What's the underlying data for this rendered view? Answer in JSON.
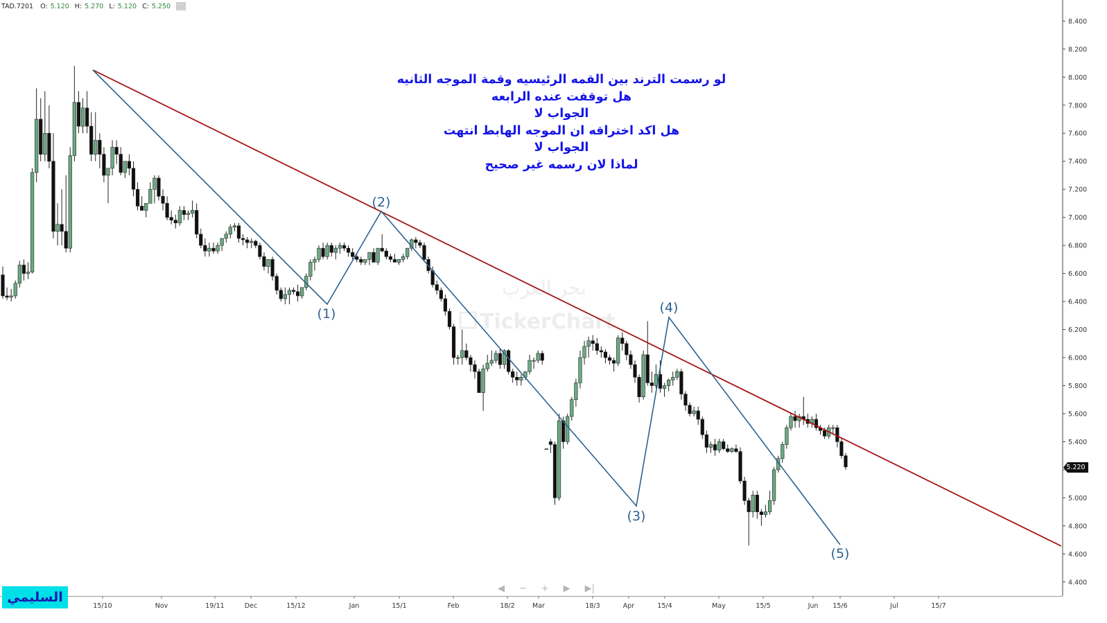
{
  "header": {
    "symbol": "TAD.7201",
    "open_label": "O:",
    "open": "5.120",
    "high_label": "H:",
    "high": "5.270",
    "low_label": "L:",
    "low": "5.120",
    "close_label": "C:",
    "close": "5.250",
    "more_icon": "ellipsis-icon"
  },
  "annotation_lines": [
    "لو رسمت الترند بين القمه  الرئيسيه وقمة الموجه الثانيه",
    "هل توقفت عنده الرابعه",
    "الجواب لا",
    "هل اكد اختراقه ان الموجه الهابط انتهت",
    "الجواب لا",
    "لماذا لان رسمه غير صحيح"
  ],
  "author_badge": "السليمي",
  "watermark": {
    "text1": "بحر العرب",
    "text2": "TickerChart"
  },
  "nav_controls": {
    "icons": [
      "chevron-left-icon",
      "minus-icon",
      "plus-icon",
      "chevron-right-icon",
      "skip-end-icon"
    ]
  },
  "colors": {
    "up_candle": "#6aab83",
    "down_candle": "#111111",
    "trendline": "#a41414",
    "wave_lines": "#2d6190",
    "annotation_text": "#1414e6",
    "badge_bg": "#00e0e8"
  },
  "chart_data": {
    "type": "candlestick",
    "symbol": "TAD.7201",
    "last_price": "5.220",
    "y_axis": {
      "range": [
        4.3,
        8.55
      ],
      "ticks": [
        "8.400",
        "8.200",
        "8.000",
        "7.800",
        "7.600",
        "7.400",
        "7.200",
        "7.000",
        "6.800",
        "6.600",
        "6.400",
        "6.200",
        "6.000",
        "5.800",
        "5.600",
        "5.400",
        "5.200",
        "5.000",
        "4.800",
        "4.600",
        "4.400"
      ]
    },
    "x_ticks": [
      "15/10",
      "Nov",
      "19/11",
      "Dec",
      "15/12",
      "Jan",
      "15/1",
      "Feb",
      "18/2",
      "Mar",
      "18/3",
      "Apr",
      "15/4",
      "May",
      "15/5",
      "Jun",
      "15/6",
      "Jul",
      "15/7"
    ],
    "candles": [
      [
        6.59,
        6.65,
        6.42,
        6.44
      ],
      [
        6.44,
        6.5,
        6.41,
        6.43
      ],
      [
        6.43,
        6.49,
        6.4,
        6.44
      ],
      [
        6.44,
        6.55,
        6.42,
        6.53
      ],
      [
        6.53,
        6.69,
        6.5,
        6.66
      ],
      [
        6.66,
        6.7,
        6.55,
        6.6
      ],
      [
        6.6,
        6.68,
        6.56,
        6.61
      ],
      [
        6.61,
        7.35,
        6.6,
        7.32
      ],
      [
        7.32,
        7.92,
        7.25,
        7.7
      ],
      [
        7.7,
        7.85,
        7.4,
        7.45
      ],
      [
        7.45,
        7.9,
        7.4,
        7.6
      ],
      [
        7.6,
        7.8,
        7.35,
        7.4
      ],
      [
        7.4,
        7.6,
        6.85,
        6.9
      ],
      [
        6.9,
        7.1,
        6.8,
        6.95
      ],
      [
        6.95,
        7.2,
        6.8,
        6.9
      ],
      [
        6.9,
        7.3,
        6.75,
        6.78
      ],
      [
        6.78,
        7.5,
        6.75,
        7.44
      ],
      [
        7.44,
        8.08,
        7.4,
        7.82
      ],
      [
        7.82,
        7.9,
        7.6,
        7.65
      ],
      [
        7.65,
        7.85,
        7.6,
        7.78
      ],
      [
        7.78,
        7.9,
        7.6,
        7.65
      ],
      [
        7.65,
        7.75,
        7.4,
        7.45
      ],
      [
        7.45,
        7.75,
        7.4,
        7.55
      ],
      [
        7.55,
        7.6,
        7.35,
        7.45
      ],
      [
        7.45,
        7.5,
        7.25,
        7.3
      ],
      [
        7.3,
        7.35,
        7.1,
        7.35
      ],
      [
        7.35,
        7.55,
        7.3,
        7.5
      ],
      [
        7.5,
        7.55,
        7.38,
        7.45
      ],
      [
        7.45,
        7.5,
        7.3,
        7.32
      ],
      [
        7.32,
        7.4,
        7.28,
        7.4
      ],
      [
        7.4,
        7.45,
        7.3,
        7.35
      ],
      [
        7.35,
        7.4,
        7.15,
        7.2
      ],
      [
        7.2,
        7.25,
        7.05,
        7.08
      ],
      [
        7.08,
        7.15,
        7.05,
        7.05
      ],
      [
        7.05,
        7.1,
        7.0,
        7.1
      ],
      [
        7.1,
        7.25,
        7.1,
        7.2
      ],
      [
        7.2,
        7.3,
        7.1,
        7.28
      ],
      [
        7.28,
        7.3,
        7.12,
        7.15
      ],
      [
        7.15,
        7.2,
        7.05,
        7.1
      ],
      [
        7.1,
        7.15,
        6.98,
        7.0
      ],
      [
        7.0,
        7.05,
        6.95,
        6.98
      ],
      [
        6.98,
        7.02,
        6.92,
        6.96
      ],
      [
        6.96,
        7.08,
        6.94,
        7.05
      ],
      [
        7.05,
        7.08,
        6.98,
        7.02
      ],
      [
        7.02,
        7.05,
        6.98,
        7.03
      ],
      [
        7.03,
        7.12,
        7.0,
        7.05
      ],
      [
        7.05,
        7.1,
        6.85,
        6.88
      ],
      [
        6.88,
        6.92,
        6.78,
        6.8
      ],
      [
        6.8,
        6.85,
        6.72,
        6.76
      ],
      [
        6.76,
        6.82,
        6.72,
        6.78
      ],
      [
        6.78,
        6.82,
        6.74,
        6.76
      ],
      [
        6.76,
        6.82,
        6.74,
        6.8
      ],
      [
        6.8,
        6.85,
        6.76,
        6.85
      ],
      [
        6.85,
        6.9,
        6.82,
        6.88
      ],
      [
        6.88,
        6.95,
        6.85,
        6.93
      ],
      [
        6.93,
        6.96,
        6.9,
        6.94
      ],
      [
        6.94,
        6.96,
        6.82,
        6.85
      ],
      [
        6.85,
        6.88,
        6.8,
        6.84
      ],
      [
        6.84,
        6.86,
        6.78,
        6.82
      ],
      [
        6.82,
        6.85,
        6.78,
        6.83
      ],
      [
        6.83,
        6.84,
        6.78,
        6.8
      ],
      [
        6.8,
        6.82,
        6.7,
        6.72
      ],
      [
        6.72,
        6.75,
        6.62,
        6.65
      ],
      [
        6.65,
        6.7,
        6.6,
        6.7
      ],
      [
        6.7,
        6.72,
        6.55,
        6.58
      ],
      [
        6.58,
        6.6,
        6.45,
        6.48
      ],
      [
        6.48,
        6.5,
        6.4,
        6.42
      ],
      [
        6.42,
        6.5,
        6.38,
        6.45
      ],
      [
        6.45,
        6.5,
        6.38,
        6.48
      ],
      [
        6.48,
        6.5,
        6.45,
        6.47
      ],
      [
        6.47,
        6.52,
        6.4,
        6.44
      ],
      [
        6.44,
        6.5,
        6.42,
        6.5
      ],
      [
        6.5,
        6.6,
        6.48,
        6.58
      ],
      [
        6.58,
        6.7,
        6.55,
        6.68
      ],
      [
        6.68,
        6.72,
        6.62,
        6.7
      ],
      [
        6.7,
        6.8,
        6.68,
        6.78
      ],
      [
        6.78,
        6.82,
        6.7,
        6.72
      ],
      [
        6.72,
        6.82,
        6.7,
        6.8
      ],
      [
        6.8,
        6.82,
        6.72,
        6.75
      ],
      [
        6.75,
        6.8,
        6.7,
        6.78
      ],
      [
        6.78,
        6.82,
        6.74,
        6.8
      ],
      [
        6.8,
        6.82,
        6.76,
        6.78
      ],
      [
        6.78,
        6.8,
        6.72,
        6.75
      ],
      [
        6.75,
        6.78,
        6.7,
        6.72
      ],
      [
        6.72,
        6.75,
        6.68,
        6.7
      ],
      [
        6.7,
        6.72,
        6.66,
        6.68
      ],
      [
        6.68,
        6.7,
        6.66,
        6.7
      ],
      [
        6.7,
        6.75,
        6.66,
        6.75
      ],
      [
        6.75,
        6.78,
        6.7,
        6.68
      ],
      [
        6.68,
        6.78,
        6.66,
        6.78
      ],
      [
        6.78,
        6.88,
        6.75,
        6.76
      ],
      [
        6.76,
        6.78,
        6.7,
        6.72
      ],
      [
        6.72,
        6.74,
        6.68,
        6.7
      ],
      [
        6.7,
        6.74,
        6.68,
        6.68
      ],
      [
        6.68,
        6.7,
        6.66,
        6.7
      ],
      [
        6.7,
        6.74,
        6.68,
        6.72
      ],
      [
        6.72,
        6.78,
        6.7,
        6.78
      ],
      [
        6.78,
        6.85,
        6.76,
        6.84
      ],
      [
        6.84,
        6.86,
        6.78,
        6.82
      ],
      [
        6.82,
        6.84,
        6.78,
        6.8
      ],
      [
        6.8,
        6.82,
        6.68,
        6.7
      ],
      [
        6.7,
        6.72,
        6.6,
        6.62
      ],
      [
        6.62,
        6.65,
        6.5,
        6.52
      ],
      [
        6.52,
        6.55,
        6.45,
        6.48
      ],
      [
        6.48,
        6.5,
        6.4,
        6.42
      ],
      [
        6.42,
        6.45,
        6.3,
        6.33
      ],
      [
        6.33,
        6.35,
        6.2,
        6.22
      ],
      [
        6.22,
        6.24,
        5.95,
        6.0
      ],
      [
        6.0,
        6.02,
        5.95,
        6.0
      ],
      [
        6.0,
        6.2,
        5.95,
        6.05
      ],
      [
        6.05,
        6.1,
        5.98,
        6.0
      ],
      [
        6.0,
        6.02,
        5.9,
        5.95
      ],
      [
        5.95,
        5.98,
        5.85,
        5.9
      ],
      [
        5.9,
        5.92,
        5.78,
        5.75
      ],
      [
        5.75,
        5.95,
        5.62,
        5.92
      ],
      [
        5.92,
        6.02,
        5.9,
        5.96
      ],
      [
        5.96,
        6.05,
        5.94,
        5.98
      ],
      [
        5.98,
        6.05,
        5.96,
        6.03
      ],
      [
        6.03,
        6.06,
        5.92,
        5.95
      ],
      [
        5.95,
        6.06,
        5.92,
        6.05
      ],
      [
        6.05,
        6.06,
        5.88,
        5.9
      ],
      [
        5.9,
        5.92,
        5.82,
        5.86
      ],
      [
        5.86,
        5.9,
        5.8,
        5.84
      ],
      [
        5.84,
        5.88,
        5.8,
        5.86
      ],
      [
        5.86,
        5.9,
        5.84,
        5.9
      ],
      [
        5.9,
        6.02,
        5.88,
        5.98
      ],
      [
        5.98,
        6.0,
        5.92,
        5.98
      ],
      [
        5.98,
        6.05,
        5.96,
        6.03
      ],
      [
        6.03,
        6.05,
        5.95,
        5.98
      ],
      [
        5.35,
        5.35,
        5.35,
        5.35
      ],
      [
        5.4,
        5.42,
        5.32,
        5.38
      ],
      [
        5.38,
        5.4,
        4.95,
        5.0
      ],
      [
        5.0,
        5.6,
        4.98,
        5.55
      ],
      [
        5.55,
        5.58,
        5.35,
        5.4
      ],
      [
        5.4,
        5.6,
        5.38,
        5.58
      ],
      [
        5.58,
        5.72,
        5.55,
        5.7
      ],
      [
        5.7,
        5.85,
        5.65,
        5.82
      ],
      [
        5.82,
        6.05,
        5.78,
        6.0
      ],
      [
        6.0,
        6.12,
        5.95,
        6.08
      ],
      [
        6.08,
        6.15,
        6.0,
        6.12
      ],
      [
        6.12,
        6.16,
        6.05,
        6.1
      ],
      [
        6.1,
        6.14,
        6.02,
        6.05
      ],
      [
        6.05,
        6.08,
        6.0,
        6.04
      ],
      [
        6.04,
        6.06,
        5.96,
        6.0
      ],
      [
        6.0,
        6.02,
        5.95,
        5.98
      ],
      [
        5.98,
        6.0,
        5.9,
        5.96
      ],
      [
        5.96,
        6.16,
        5.94,
        6.14
      ],
      [
        6.14,
        6.18,
        6.05,
        6.1
      ],
      [
        6.1,
        6.12,
        5.98,
        6.02
      ],
      [
        6.02,
        6.05,
        5.92,
        5.95
      ],
      [
        5.95,
        5.98,
        5.82,
        5.86
      ],
      [
        5.86,
        5.88,
        5.68,
        5.72
      ],
      [
        5.72,
        6.05,
        5.7,
        6.02
      ],
      [
        6.02,
        6.26,
        5.8,
        5.82
      ],
      [
        5.82,
        5.9,
        5.75,
        5.8
      ],
      [
        5.8,
        5.95,
        5.78,
        5.88
      ],
      [
        5.88,
        5.98,
        5.75,
        5.78
      ],
      [
        5.78,
        5.82,
        5.72,
        5.8
      ],
      [
        5.8,
        5.85,
        5.76,
        5.84
      ],
      [
        5.84,
        5.9,
        5.8,
        5.86
      ],
      [
        5.86,
        5.92,
        5.84,
        5.9
      ],
      [
        5.9,
        5.92,
        5.7,
        5.74
      ],
      [
        5.74,
        5.76,
        5.62,
        5.66
      ],
      [
        5.66,
        5.68,
        5.58,
        5.6
      ],
      [
        5.6,
        5.65,
        5.58,
        5.62
      ],
      [
        5.62,
        5.65,
        5.52,
        5.56
      ],
      [
        5.56,
        5.58,
        5.42,
        5.45
      ],
      [
        5.45,
        5.48,
        5.32,
        5.36
      ],
      [
        5.36,
        5.4,
        5.32,
        5.38
      ],
      [
        5.38,
        5.42,
        5.3,
        5.34
      ],
      [
        5.34,
        5.42,
        5.32,
        5.4
      ],
      [
        5.4,
        5.42,
        5.34,
        5.35
      ],
      [
        5.35,
        5.38,
        5.32,
        5.33
      ],
      [
        5.33,
        5.36,
        5.32,
        5.35
      ],
      [
        5.35,
        5.38,
        5.32,
        5.33
      ],
      [
        5.33,
        5.36,
        5.1,
        5.12
      ],
      [
        5.12,
        5.15,
        4.95,
        4.98
      ],
      [
        4.98,
        5.0,
        4.66,
        4.9
      ],
      [
        4.9,
        5.05,
        4.86,
        5.02
      ],
      [
        5.02,
        5.05,
        4.85,
        4.9
      ],
      [
        4.9,
        4.92,
        4.8,
        4.88
      ],
      [
        4.88,
        4.95,
        4.86,
        4.9
      ],
      [
        4.9,
        5.05,
        4.88,
        4.98
      ],
      [
        4.98,
        5.22,
        4.95,
        5.2
      ],
      [
        5.2,
        5.3,
        5.18,
        5.28
      ],
      [
        5.28,
        5.4,
        5.25,
        5.38
      ],
      [
        5.38,
        5.52,
        5.35,
        5.5
      ],
      [
        5.5,
        5.6,
        5.48,
        5.58
      ],
      [
        5.58,
        5.62,
        5.5,
        5.55
      ],
      [
        5.55,
        5.6,
        5.5,
        5.58
      ],
      [
        5.58,
        5.72,
        5.52,
        5.56
      ],
      [
        5.56,
        5.6,
        5.5,
        5.53
      ],
      [
        5.53,
        5.58,
        5.5,
        5.56
      ],
      [
        5.56,
        5.6,
        5.48,
        5.5
      ],
      [
        5.5,
        5.52,
        5.45,
        5.48
      ],
      [
        5.48,
        5.5,
        5.42,
        5.44
      ],
      [
        5.44,
        5.52,
        5.42,
        5.5
      ],
      [
        5.5,
        5.52,
        5.45,
        5.5
      ],
      [
        5.5,
        5.52,
        5.36,
        5.4
      ],
      [
        5.4,
        5.42,
        5.28,
        5.3
      ],
      [
        5.3,
        5.32,
        5.2,
        5.22
      ]
    ]
  }
}
